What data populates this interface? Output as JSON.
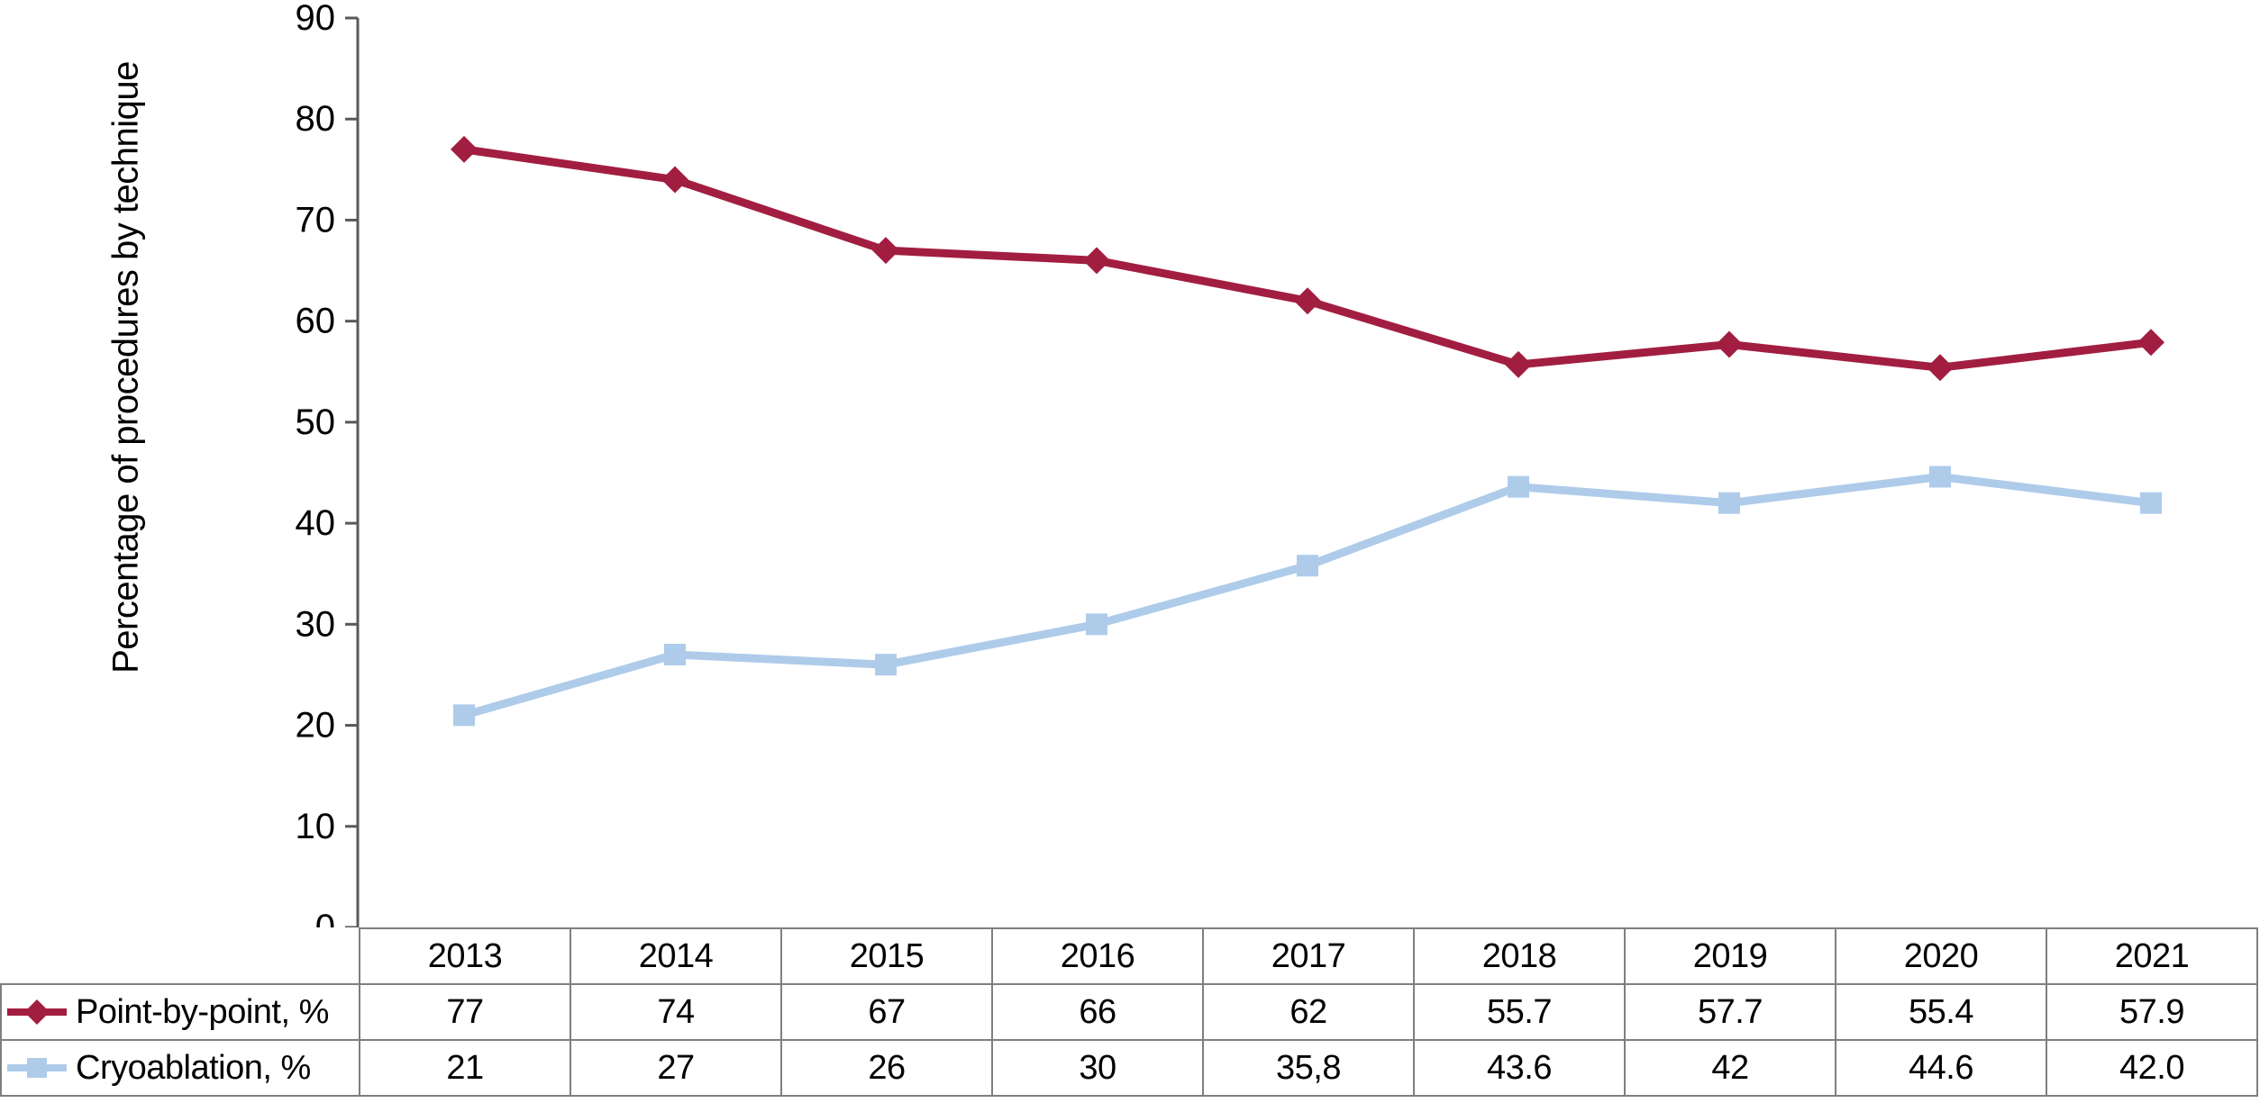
{
  "figure": {
    "y_axis_title": "Percentage of procedures by technique",
    "colors": {
      "background": "#FFFFFF",
      "axis": "#595959",
      "table_border": "#7F7F7F",
      "text": "#000000",
      "point_by_point": "#A21E41",
      "cryoablation": "#AECBEA"
    }
  },
  "chart_data": {
    "type": "line",
    "title": "",
    "xlabel": "",
    "ylabel": "Percentage of procedures by technique",
    "ylim": [
      0,
      90
    ],
    "ytick_step": 10,
    "yticks": [
      "0",
      "10",
      "20",
      "30",
      "40",
      "50",
      "60",
      "70",
      "80",
      "90"
    ],
    "grid": false,
    "legend_position": "table-rows-left",
    "categories": [
      "2013",
      "2014",
      "2015",
      "2016",
      "2017",
      "2018",
      "2019",
      "2020",
      "2021"
    ],
    "series": [
      {
        "name": "Point-by-point, %",
        "marker": "diamond",
        "color": "#A21E41",
        "values": [
          77,
          74,
          67,
          66,
          62,
          55.7,
          57.7,
          55.4,
          57.9
        ],
        "labels": [
          "77",
          "74",
          "67",
          "66",
          "62",
          "55.7",
          "57.7",
          "55.4",
          "57.9"
        ]
      },
      {
        "name": "Cryoablation, %",
        "marker": "square",
        "color": "#AECBEA",
        "values": [
          21,
          27,
          26,
          30,
          35.8,
          43.6,
          42,
          44.6,
          42
        ],
        "labels": [
          "21",
          "27",
          "26",
          "30",
          "35,8",
          "43.6",
          "42",
          "44.6",
          "42.0"
        ]
      }
    ]
  }
}
